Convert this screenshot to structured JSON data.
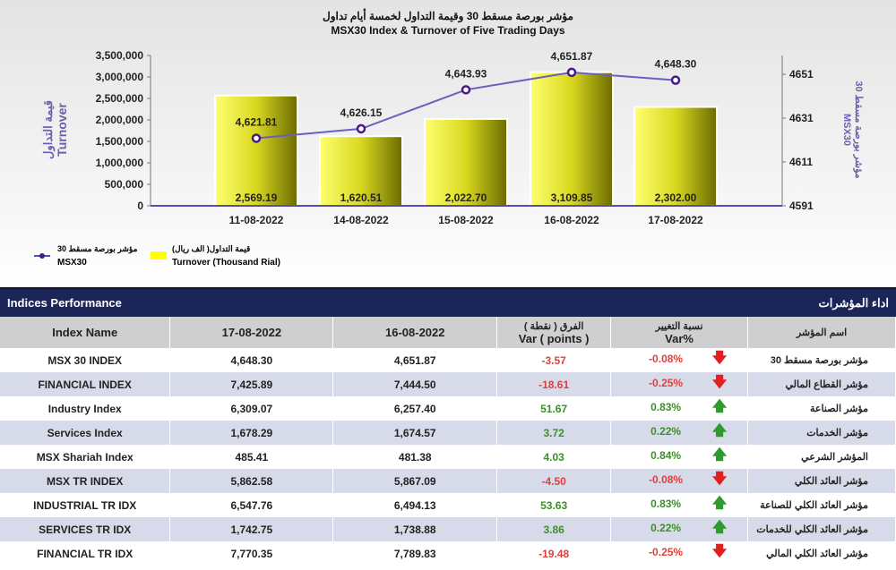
{
  "chart_data": {
    "type": "bar+line",
    "title_ar": "مؤشر بورصة مسقط 30 وقيمة التداول لخمسة أيام تداول",
    "title": "MSX30 Index & Turnover of Five Trading Days",
    "categories": [
      "11-08-2022",
      "14-08-2022",
      "15-08-2022",
      "16-08-2022",
      "17-08-2022"
    ],
    "series": [
      {
        "name": "Turnover (Thousand Rial)",
        "name_ar": "قيمة التداول( الف ريال)",
        "type": "bar",
        "values": [
          2569.19,
          1620.51,
          2022.7,
          3109.85,
          2302.0
        ],
        "labels": [
          "2,569.19",
          "1,620.51",
          "2,022.70",
          "3,109.85",
          "2,302.00"
        ],
        "color": "#e8e800"
      },
      {
        "name": "MSX30",
        "name_ar": "مؤشر بورصة مسقط 30",
        "type": "line",
        "values": [
          4621.81,
          4626.15,
          4643.93,
          4651.87,
          4648.3
        ],
        "labels": [
          "4,621.81",
          "4,626.15",
          "4,643.93",
          "4,651.87",
          "4,648.30"
        ],
        "color": "#5c4bb0"
      }
    ],
    "ylabel_left": "Turnover",
    "ylabel_left_ar": "قيمة التداول",
    "ylabel_right": "MSX30",
    "ylabel_right_ar": "مؤشر بورصة مسقط 30",
    "yticks_left": [
      "0",
      "500,000",
      "1,000,000",
      "1,500,000",
      "2,000,000",
      "2,500,000",
      "3,000,000",
      "3,500,000"
    ],
    "ylim_left": [
      0,
      3500000
    ],
    "yticks_right": [
      "4591",
      "4611",
      "4631",
      "4651"
    ],
    "ylim_right": [
      4591,
      4660
    ],
    "legend": "bottom-left"
  },
  "table": {
    "title": "Indices Performance",
    "title_ar": "اداء المؤشرات",
    "headers": [
      "Index Name",
      "17-08-2022",
      "16-08-2022",
      "الفرق ( نقطة )",
      "Var ( points )",
      "نسبة التغيير",
      "Var%",
      "اسم المؤشر"
    ],
    "rows": [
      [
        "MSX 30 INDEX",
        "4,648.30",
        "4,651.87",
        "-3.57",
        "-0.08%",
        "مؤشر بورصة مسقط 30"
      ],
      [
        "FINANCIAL INDEX",
        "7,425.89",
        "7,444.50",
        "-18.61",
        "-0.25%",
        "مؤشر القطاع المالي"
      ],
      [
        "Industry Index",
        "6,309.07",
        "6,257.40",
        "51.67",
        "0.83%",
        "مؤشر الصناعة"
      ],
      [
        "Services Index",
        "1,678.29",
        "1,674.57",
        "3.72",
        "0.22%",
        "مؤشر الخدمات"
      ],
      [
        "MSX Shariah Index",
        "485.41",
        "481.38",
        "4.03",
        "0.84%",
        "المؤشر الشرعي"
      ],
      [
        "MSX TR INDEX",
        "5,862.58",
        "5,867.09",
        "-4.50",
        "-0.08%",
        "مؤشر العائد الكلي"
      ],
      [
        "INDUSTRIAL TR IDX",
        "6,547.76",
        "6,494.13",
        "53.63",
        "0.83%",
        "مؤشر العائد الكلي للصناعة"
      ],
      [
        "SERVICES TR IDX",
        "1,742.75",
        "1,738.88",
        "3.86",
        "0.22%",
        "مؤشر العائد الكلي للخدمات"
      ],
      [
        "FINANCIAL TR IDX",
        "7,770.35",
        "7,789.83",
        "-19.48",
        "-0.25%",
        "مؤشر العائد الكلي المالي"
      ]
    ]
  }
}
